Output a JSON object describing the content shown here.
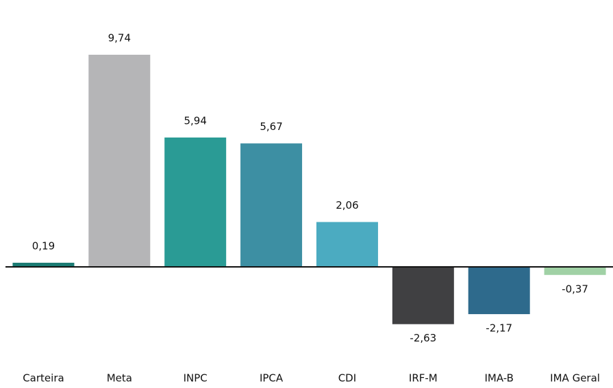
{
  "chart_data": {
    "type": "bar",
    "categories": [
      "Carteira",
      "Meta",
      "INPC",
      "IPCA",
      "CDI",
      "IRF-M",
      "IMA-B",
      "IMA Geral"
    ],
    "values": [
      0.19,
      9.74,
      5.94,
      5.67,
      2.06,
      -2.63,
      -2.17,
      -0.37
    ],
    "value_labels": [
      "0,19",
      "9,74",
      "5,94",
      "5,67",
      "2,06",
      "-2,63",
      "-2,17",
      "-0,37"
    ],
    "colors": [
      "#1b7b73",
      "#b5b5b7",
      "#2a9b95",
      "#3d8fa3",
      "#4babc1",
      "#404042",
      "#2e6a8c",
      "#a0d1a5"
    ]
  }
}
